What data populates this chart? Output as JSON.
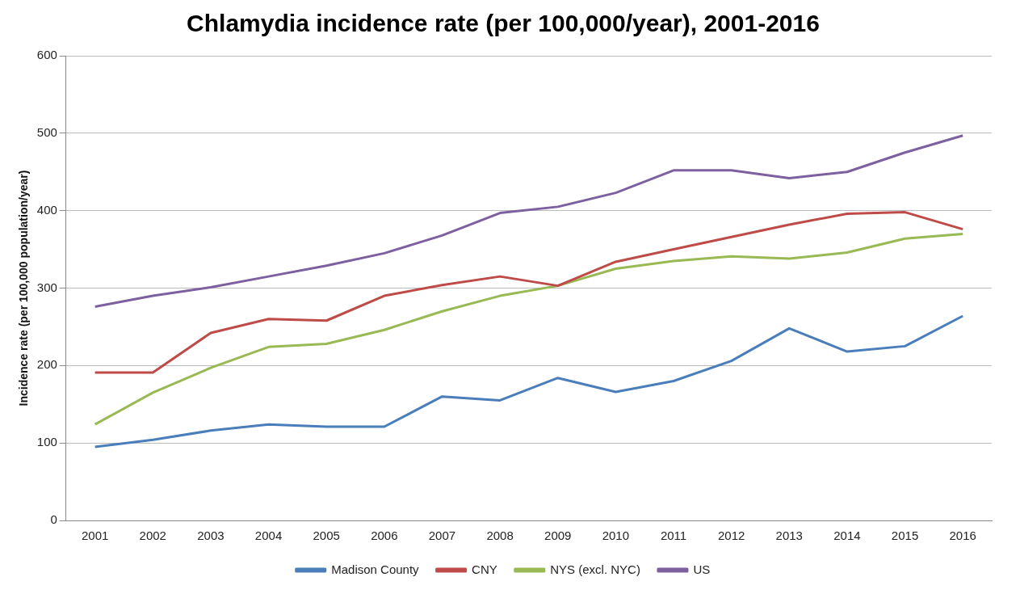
{
  "chart_data": {
    "type": "line",
    "title": "Chlamydia incidence rate (per 100,000/year), 2001-2016",
    "ylabel": "Incidence rate (per 100,000 population/year)",
    "categories": [
      "2001",
      "2002",
      "2003",
      "2004",
      "2005",
      "2006",
      "2007",
      "2008",
      "2009",
      "2010",
      "2011",
      "2012",
      "2013",
      "2014",
      "2015",
      "2016"
    ],
    "series": [
      {
        "name": "Madison County",
        "color": "#4a7ebb",
        "values": [
          95,
          104,
          116,
          124,
          121,
          121,
          160,
          155,
          184,
          166,
          180,
          206,
          248,
          218,
          225,
          264
        ]
      },
      {
        "name": "CNY",
        "color": "#be4b48",
        "values": [
          191,
          191,
          242,
          260,
          258,
          290,
          304,
          315,
          303,
          334,
          350,
          366,
          382,
          396,
          398,
          376
        ]
      },
      {
        "name": "NYS (excl. NYC)",
        "color": "#98b954",
        "values": [
          124,
          165,
          197,
          224,
          228,
          246,
          270,
          290,
          303,
          325,
          335,
          341,
          338,
          346,
          364,
          370
        ]
      },
      {
        "name": "US",
        "color": "#7d60a0",
        "values": [
          276,
          290,
          301,
          315,
          329,
          345,
          368,
          397,
          405,
          423,
          452,
          452,
          442,
          450,
          475,
          497
        ]
      }
    ],
    "ylim": [
      0,
      600
    ],
    "yticks": [
      0,
      100,
      200,
      300,
      400,
      500,
      600
    ],
    "grid": "y",
    "legend": "bottom",
    "marker": "none",
    "line_style": "solid"
  }
}
